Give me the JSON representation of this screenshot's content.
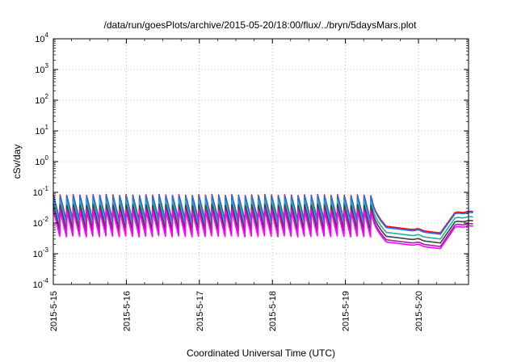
{
  "chart_data": {
    "type": "line",
    "title": "/data/run/goesPlots/archive/2015-05-20/18:00/flux/../bryn/5daysMars.plot",
    "xlabel": "Coordinated Universal Time (UTC)",
    "ylabel": "cSv/day",
    "yscale": "log",
    "ylim": [
      0.0001,
      10000
    ],
    "x_ticks": [
      "2015-5-15",
      "2015-5-16",
      "2015-5-17",
      "2015-5-18",
      "2015-5-19",
      "2015-5-20"
    ],
    "x_range_days": [
      0,
      5.75
    ],
    "y_ticks": [
      {
        "base": "10",
        "exp": "-4"
      },
      {
        "base": "10",
        "exp": "-3"
      },
      {
        "base": "10",
        "exp": "-2"
      },
      {
        "base": "10",
        "exp": "-1"
      },
      {
        "base": "10",
        "exp": "0"
      },
      {
        "base": "10",
        "exp": "1"
      },
      {
        "base": "10",
        "exp": "2"
      },
      {
        "base": "10",
        "exp": "3"
      },
      {
        "base": "10",
        "exp": "4"
      }
    ],
    "grid": true,
    "series": [
      {
        "color": "#ff0000",
        "peak": 0.085,
        "trough": 0.012,
        "quiet": 0.0055,
        "end": 0.024
      },
      {
        "color": "#1f6fff",
        "peak": 0.08,
        "trough": 0.011,
        "quiet": 0.005,
        "end": 0.022
      },
      {
        "color": "#20b0a0",
        "peak": 0.055,
        "trough": 0.0075,
        "quiet": 0.0035,
        "end": 0.016
      },
      {
        "color": "#404040",
        "peak": 0.04,
        "trough": 0.0055,
        "quiet": 0.0026,
        "end": 0.012
      },
      {
        "color": "#a0209f",
        "peak": 0.03,
        "trough": 0.0042,
        "quiet": 0.002,
        "end": 0.0095
      },
      {
        "color": "#ff00ff",
        "peak": 0.026,
        "trough": 0.0035,
        "quiet": 0.0017,
        "end": 0.008
      }
    ],
    "pulse_period_days": 0.0905,
    "pulse_end_day": 4.36,
    "decay_start_day": 4.36,
    "quiet_start_day": 4.56,
    "quiet_bump_day": 5.0,
    "dip_day": 5.3,
    "rise_end_day": 5.5
  }
}
